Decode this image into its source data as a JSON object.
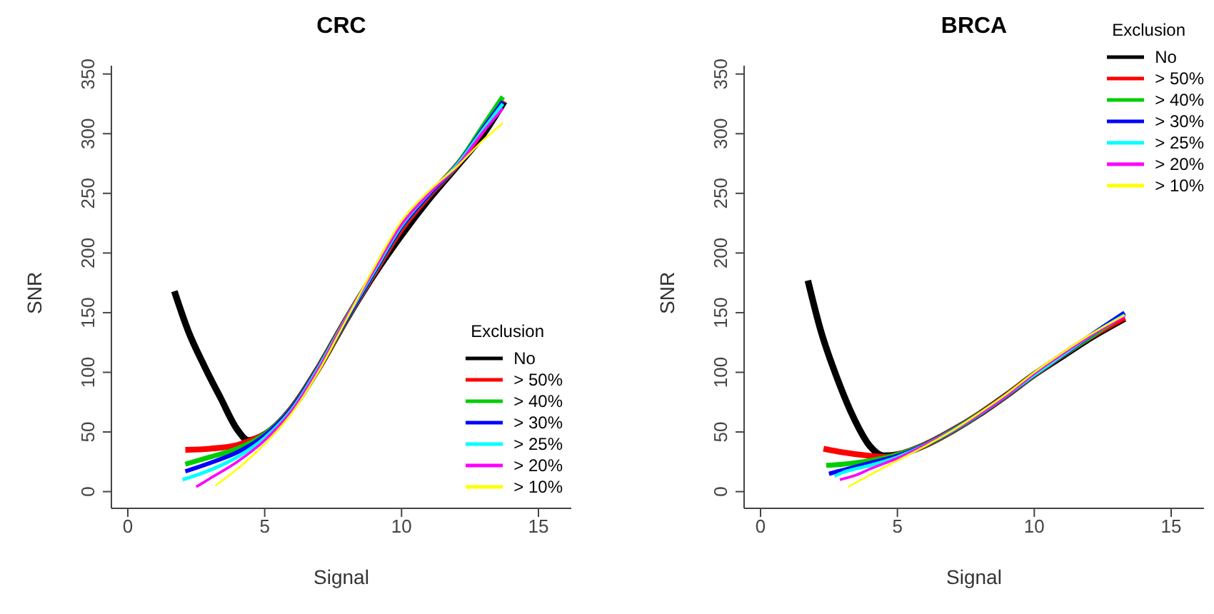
{
  "chart_data": [
    {
      "type": "line",
      "title": "CRC",
      "xlabel": "Signal",
      "ylabel": "SNR",
      "legend_title": "Exclusion",
      "legend": "bottom right",
      "xlim": [
        -0.6,
        16.2
      ],
      "xticks": [
        0,
        5,
        10,
        15
      ],
      "ylim": [
        -14,
        357
      ],
      "yticks": [
        0,
        50,
        100,
        150,
        200,
        250,
        300,
        350
      ],
      "series": [
        {
          "name": "No",
          "color": "#000000",
          "x": [
            1.7,
            2.2,
            2.8,
            3.4,
            4.0,
            4.4,
            5,
            6,
            7,
            8,
            9,
            10,
            11,
            12,
            13,
            13.75
          ],
          "values": [
            168,
            135,
            105,
            78,
            52,
            43,
            48,
            70,
            105,
            145,
            182,
            215,
            245,
            272,
            300,
            327
          ]
        },
        {
          "name": "> 50%",
          "color": "#ff0000",
          "x": [
            2.1,
            3,
            4,
            4.6,
            5,
            6,
            7,
            8,
            9,
            10,
            11,
            12,
            13.7
          ],
          "values": [
            35,
            36,
            39,
            44,
            48,
            70,
            105,
            145,
            183,
            220,
            248,
            273,
            328
          ]
        },
        {
          "name": "> 40%",
          "color": "#00cd00",
          "x": [
            2.1,
            3,
            4,
            5,
            6,
            7,
            8,
            9,
            10,
            11,
            12,
            13,
            13.7
          ],
          "values": [
            23,
            29,
            36,
            48,
            70,
            105,
            145,
            184,
            222,
            249,
            273,
            307,
            331
          ]
        },
        {
          "name": "> 30%",
          "color": "#0000ff",
          "x": [
            2.1,
            3,
            4,
            5,
            6,
            7,
            8,
            9,
            10,
            11,
            12,
            13,
            13.7
          ],
          "values": [
            17,
            24,
            33,
            47,
            70,
            105,
            145,
            184,
            222,
            249,
            273,
            305,
            327
          ]
        },
        {
          "name": "> 25%",
          "color": "#00ffff",
          "x": [
            2.0,
            3,
            4,
            5,
            6,
            7,
            8,
            9,
            10,
            11,
            12,
            13,
            13.7
          ],
          "values": [
            10,
            18,
            29,
            45,
            69,
            105,
            146,
            185,
            223,
            250,
            273,
            304,
            325
          ]
        },
        {
          "name": "> 20%",
          "color": "#ff00ff",
          "x": [
            2.5,
            3,
            4,
            5,
            6,
            7,
            8,
            9,
            10,
            11,
            12,
            13,
            13.7
          ],
          "values": [
            4,
            11,
            25,
            43,
            68,
            104,
            146,
            186,
            224,
            250,
            272,
            302,
            321
          ]
        },
        {
          "name": "> 10%",
          "color": "#ffff00",
          "x": [
            3.2,
            4,
            5,
            6,
            7,
            8,
            9,
            10,
            11,
            12,
            13,
            13.7
          ],
          "values": [
            5,
            19,
            40,
            66,
            102,
            145,
            188,
            227,
            252,
            272,
            295,
            309
          ]
        }
      ]
    },
    {
      "type": "line",
      "title": "BRCA",
      "xlabel": "Signal",
      "ylabel": "SNR",
      "legend_title": "Exclusion",
      "legend": "top right",
      "xlim": [
        -0.6,
        16.2
      ],
      "xticks": [
        0,
        5,
        10,
        15
      ],
      "ylim": [
        -14,
        357
      ],
      "yticks": [
        0,
        50,
        100,
        150,
        200,
        250,
        300,
        350
      ],
      "series": [
        {
          "name": "No",
          "color": "#000000",
          "x": [
            1.73,
            2.2,
            2.8,
            3.4,
            4.0,
            4.5,
            5,
            6,
            7,
            8,
            9,
            10,
            11,
            12,
            13.3
          ],
          "values": [
            177,
            135,
            95,
            62,
            38,
            30,
            31,
            39,
            51,
            65,
            81,
            98,
            113,
            128,
            145
          ]
        },
        {
          "name": "> 50%",
          "color": "#ff0000",
          "x": [
            2.3,
            3,
            4,
            4.6,
            5,
            6,
            7,
            8,
            9,
            10,
            11,
            12,
            13.3
          ],
          "values": [
            36,
            33,
            30,
            29,
            31,
            39,
            51,
            65,
            81,
            98,
            114,
            129,
            146
          ]
        },
        {
          "name": "> 40%",
          "color": "#00cd00",
          "x": [
            2.4,
            3,
            4,
            5,
            6,
            7,
            8,
            9,
            10,
            11,
            12,
            13.3
          ],
          "values": [
            22,
            23,
            26,
            31,
            39,
            51,
            65,
            81,
            98,
            114,
            129,
            149
          ]
        },
        {
          "name": "> 30%",
          "color": "#0000ff",
          "x": [
            2.5,
            3,
            4,
            5,
            6,
            7,
            8,
            9,
            10,
            11,
            12,
            13.3
          ],
          "values": [
            15,
            18,
            24,
            30,
            39,
            51,
            65,
            81,
            98,
            114,
            130,
            150
          ]
        },
        {
          "name": "> 25%",
          "color": "#00ffff",
          "x": [
            2.7,
            3,
            4,
            5,
            6,
            7,
            8,
            9,
            10,
            11,
            12,
            13.3
          ],
          "values": [
            13,
            16,
            22,
            29,
            39,
            51,
            65,
            81,
            98,
            114,
            130,
            148
          ]
        },
        {
          "name": "> 20%",
          "color": "#ff00ff",
          "x": [
            2.9,
            3.5,
            4,
            5,
            6,
            7,
            8,
            9,
            10,
            11,
            12,
            13.3
          ],
          "values": [
            10,
            14,
            19,
            28,
            39,
            51,
            65,
            81,
            99,
            115,
            130,
            147
          ]
        },
        {
          "name": "> 10%",
          "color": "#ffff00",
          "x": [
            3.2,
            4,
            5,
            6,
            7,
            8,
            9,
            10,
            11,
            12,
            13.3
          ],
          "values": [
            4,
            14,
            26,
            38,
            51,
            66,
            82,
            100,
            116,
            131,
            148
          ]
        }
      ]
    }
  ]
}
